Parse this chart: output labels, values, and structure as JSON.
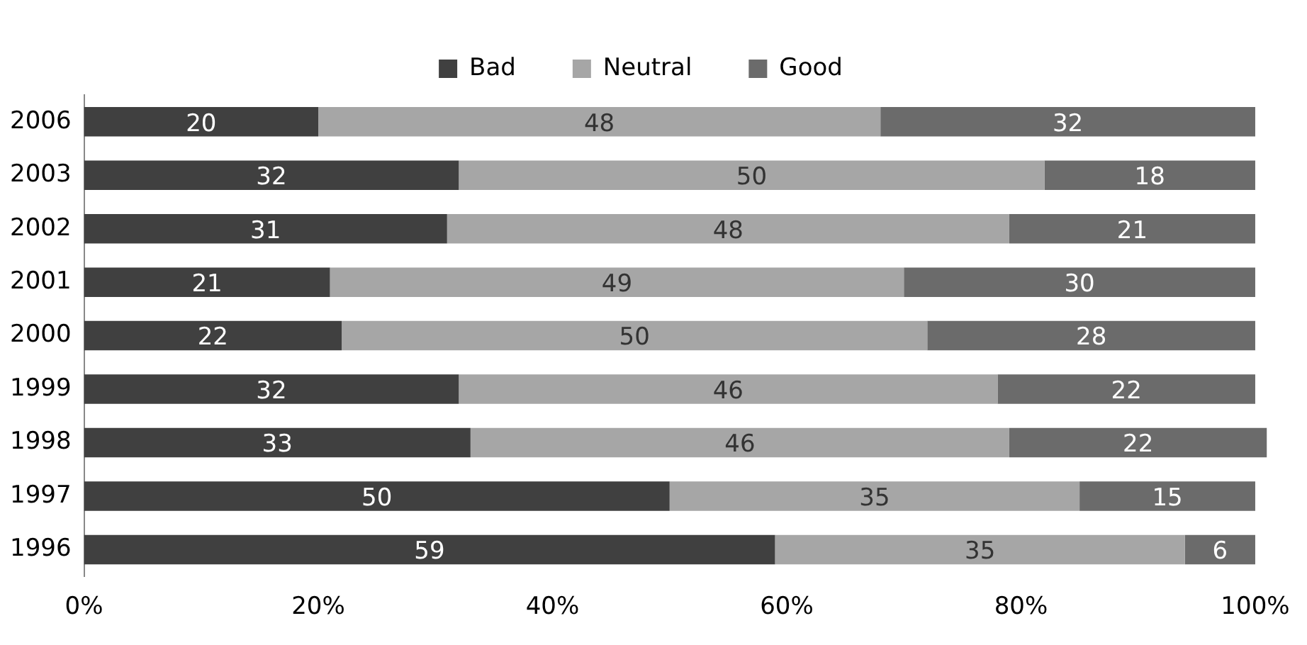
{
  "chart_data": {
    "type": "bar",
    "orientation": "horizontal",
    "stacked": true,
    "data_labels": true,
    "legend": "top",
    "grid": false,
    "categories": [
      "2006",
      "2003",
      "2002",
      "2001",
      "2000",
      "1999",
      "1998",
      "1997",
      "1996"
    ],
    "series": [
      {
        "name": "Bad",
        "color": "#404040",
        "values": [
          20,
          32,
          31,
          21,
          22,
          32,
          33,
          50,
          59
        ]
      },
      {
        "name": "Neutral",
        "color": "#a6a6a6",
        "values": [
          48,
          50,
          48,
          49,
          50,
          46,
          46,
          35,
          35
        ]
      },
      {
        "name": "Good",
        "color": "#6b6b6b",
        "values": [
          32,
          18,
          21,
          30,
          28,
          22,
          22,
          15,
          6
        ]
      }
    ],
    "xlim": [
      0,
      101
    ],
    "xticks": [
      {
        "value": 0,
        "label": "0%"
      },
      {
        "value": 20,
        "label": "20%"
      },
      {
        "value": 40,
        "label": "40%"
      },
      {
        "value": 60,
        "label": "60%"
      },
      {
        "value": 80,
        "label": "80%"
      },
      {
        "value": 100,
        "label": "100%"
      }
    ]
  }
}
